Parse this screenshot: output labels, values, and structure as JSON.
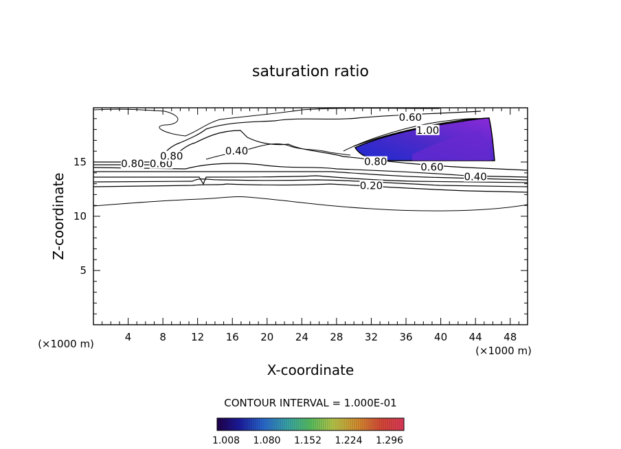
{
  "chart_data": {
    "type": "contour",
    "title": "saturation ratio",
    "xlabel": "X-coordinate",
    "ylabel": "Z-coordinate",
    "x_unit": "(×1000 m)",
    "xlim": [
      0,
      50
    ],
    "ylim": [
      0,
      20
    ],
    "x_ticks": [
      4,
      8,
      12,
      16,
      20,
      24,
      28,
      32,
      36,
      40,
      44,
      48
    ],
    "y_ticks": [
      5,
      10,
      15
    ],
    "contour_interval_text": "CONTOUR INTERVAL = 1.000E-01",
    "contour_labels": [
      {
        "text": "0.60",
        "x": 36.5,
        "y": 19.0
      },
      {
        "text": "1.00",
        "x": 38.5,
        "y": 17.8
      },
      {
        "text": "0.40",
        "x": 16.5,
        "y": 15.9
      },
      {
        "text": "0.80",
        "x": 4.5,
        "y": 14.7
      },
      {
        "text": "0.60",
        "x": 7.8,
        "y": 14.7
      },
      {
        "text": "0.80",
        "x": 9.0,
        "y": 15.4
      },
      {
        "text": "0.80",
        "x": 32.5,
        "y": 14.9
      },
      {
        "text": "0.60",
        "x": 39.0,
        "y": 14.4
      },
      {
        "text": "0.40",
        "x": 44.0,
        "y": 13.5
      },
      {
        "text": "0.20",
        "x": 32.0,
        "y": 12.7
      }
    ],
    "fill": {
      "description_values": [
        1.008,
        1.296
      ],
      "region_x": [
        30,
        46
      ],
      "region_z": [
        15.0,
        18.9
      ]
    },
    "colorbar": {
      "tick_labels": [
        "1.008",
        "1.080",
        "1.152",
        "1.224",
        "1.296"
      ],
      "colors": [
        "#20004a",
        "#1c1ca0",
        "#2a6ad0",
        "#3aa8a8",
        "#58c060",
        "#b8c84a",
        "#d89030",
        "#d84838",
        "#e03a5a"
      ]
    }
  }
}
